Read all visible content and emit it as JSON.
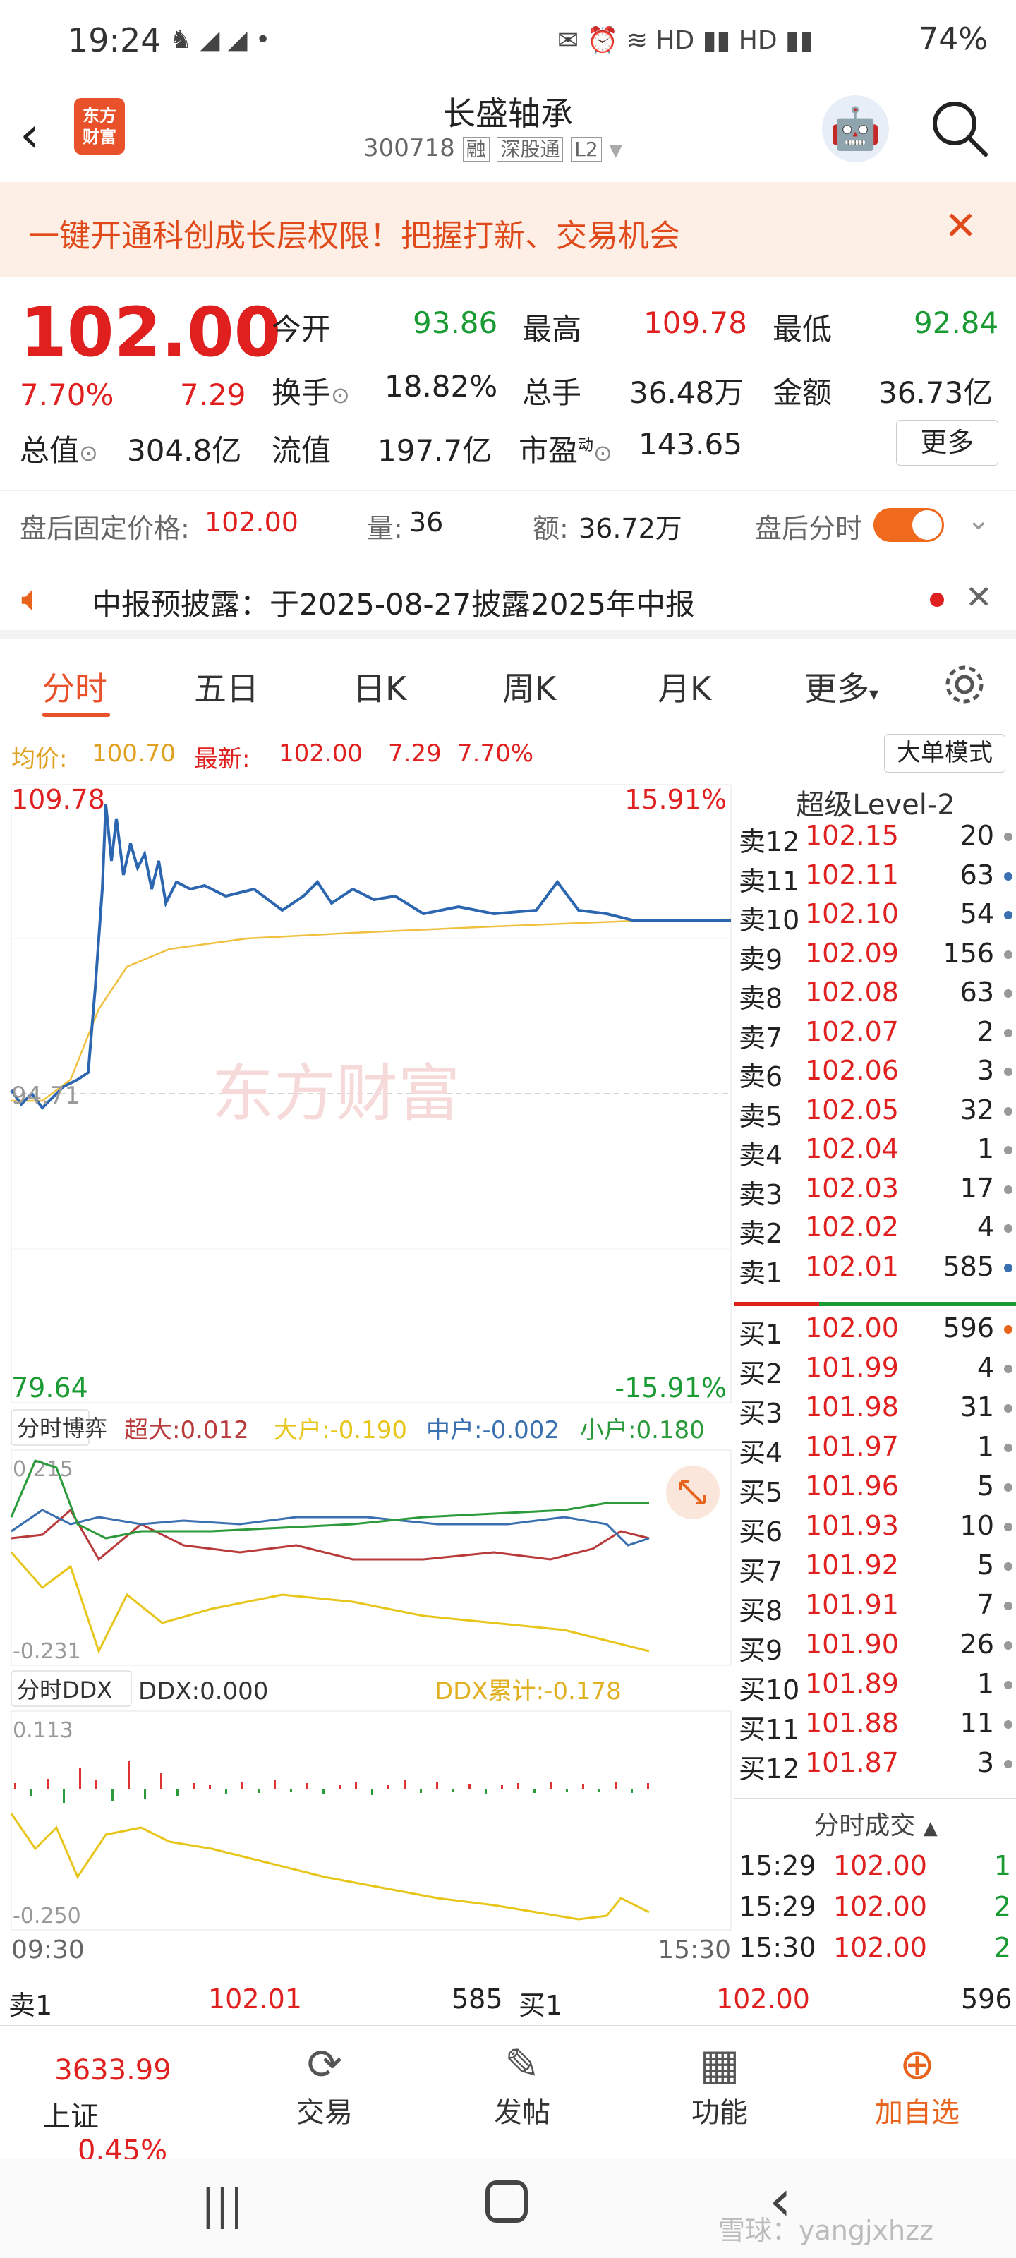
{
  "status": {
    "time": "19:24",
    "battery": "74%"
  },
  "header": {
    "title": "长盛轴承",
    "code": "300718",
    "tags": [
      "融",
      "深股通",
      "L2"
    ],
    "logo_line1": "东方",
    "logo_line2": "财富"
  },
  "banner": {
    "text": "一键开通科创成长层权限！把握打新、交易机会"
  },
  "quote": {
    "price": "102.00",
    "pct": "7.70%",
    "chg": "7.29",
    "open_label": "今开",
    "open": "93.86",
    "high_label": "最高",
    "high": "109.78",
    "low_label": "最低",
    "low": "92.84",
    "turnover_label": "换手",
    "turnover": "18.82%",
    "vol_label": "总手",
    "vol": "36.48万",
    "amount_label": "金额",
    "amount": "36.73亿",
    "mcap_label": "总值",
    "mcap": "304.8亿",
    "float_label": "流值",
    "float": "197.7亿",
    "pe_label": "市盈",
    "pe_sup": "动",
    "pe": "143.65",
    "more": "更多"
  },
  "afterhours": {
    "fixed_label": "盘后固定价格:",
    "fixed_price": "102.00",
    "qty_label": "量:",
    "qty": "36",
    "amt_label": "额:",
    "amt": "36.72万",
    "toggle_label": "盘后分时"
  },
  "notice": {
    "text": "中报预披露：于2025-08-27披露2025年中报"
  },
  "tabs": [
    "分时",
    "五日",
    "日K",
    "周K",
    "月K",
    "更多"
  ],
  "avg": {
    "avg_label": "均价:",
    "avg": "100.70",
    "latest_label": "最新:",
    "latest": "102.00",
    "chg": "7.29",
    "pct": "7.70%",
    "mode": "大单模式"
  },
  "chart": {
    "top_price": "109.78",
    "top_pct": "15.91%",
    "mid_price": "94.71",
    "bottom_price": "79.64",
    "bottom_pct": "-15.91%",
    "bojue_label": "分时博弈",
    "chaoda": "超大:0.012",
    "dahu": "大户:-0.190",
    "zhonghu": "中户:-0.002",
    "xiaohu": "小户:0.180",
    "bj_top": "0.215",
    "bj_bot": "-0.231",
    "ddx_label": "分时DDX",
    "ddx": "DDX:0.000",
    "ddx_cum": "DDX累计:-0.178",
    "ddx_top": "0.113",
    "ddx_bot": "-0.250",
    "time_start": "09:30",
    "time_end": "15:30",
    "colors": {
      "price": "#2d66b0",
      "avg": "#f0c040",
      "chaoda": "#b83a3a",
      "dahu": "#e8c51a",
      "zhonghu": "#3a6fb0",
      "xiaohu": "#2a9a3a"
    }
  },
  "book": {
    "title": "超级Level-2",
    "sells": [
      {
        "label": "卖12",
        "price": "102.15",
        "vol": "20"
      },
      {
        "label": "卖11",
        "price": "102.11",
        "vol": "63"
      },
      {
        "label": "卖10",
        "price": "102.10",
        "vol": "54"
      },
      {
        "label": "卖9",
        "price": "102.09",
        "vol": "156"
      },
      {
        "label": "卖8",
        "price": "102.08",
        "vol": "63"
      },
      {
        "label": "卖7",
        "price": "102.07",
        "vol": "2"
      },
      {
        "label": "卖6",
        "price": "102.06",
        "vol": "3"
      },
      {
        "label": "卖5",
        "price": "102.05",
        "vol": "32"
      },
      {
        "label": "卖4",
        "price": "102.04",
        "vol": "1"
      },
      {
        "label": "卖3",
        "price": "102.03",
        "vol": "17"
      },
      {
        "label": "卖2",
        "price": "102.02",
        "vol": "4"
      },
      {
        "label": "卖1",
        "price": "102.01",
        "vol": "585"
      }
    ],
    "buys": [
      {
        "label": "买1",
        "price": "102.00",
        "vol": "596"
      },
      {
        "label": "买2",
        "price": "101.99",
        "vol": "4"
      },
      {
        "label": "买3",
        "price": "101.98",
        "vol": "31"
      },
      {
        "label": "买4",
        "price": "101.97",
        "vol": "1"
      },
      {
        "label": "买5",
        "price": "101.96",
        "vol": "5"
      },
      {
        "label": "买6",
        "price": "101.93",
        "vol": "10"
      },
      {
        "label": "买7",
        "price": "101.92",
        "vol": "5"
      },
      {
        "label": "买8",
        "price": "101.91",
        "vol": "7"
      },
      {
        "label": "买9",
        "price": "101.90",
        "vol": "26"
      },
      {
        "label": "买10",
        "price": "101.89",
        "vol": "1"
      },
      {
        "label": "买11",
        "price": "101.88",
        "vol": "11"
      },
      {
        "label": "买12",
        "price": "101.87",
        "vol": "3"
      }
    ],
    "trades_title": "分时成交",
    "trades": [
      {
        "time": "15:29",
        "price": "102.00",
        "vol": "1"
      },
      {
        "time": "15:29",
        "price": "102.00",
        "vol": "2"
      },
      {
        "time": "15:30",
        "price": "102.00",
        "vol": "2"
      }
    ]
  },
  "bottombook": {
    "sell_label": "卖1",
    "sell_price": "102.01",
    "sell_vol": "585",
    "buy_label": "买1",
    "buy_price": "102.00",
    "buy_vol": "596"
  },
  "nav": {
    "index_value": "3633.99",
    "index_name": "上证",
    "index_pct": "0.45%",
    "trade": "交易",
    "post": "发帖",
    "func": "功能",
    "watch": "加自选"
  },
  "watermark": "雪球：yangjxhzz"
}
